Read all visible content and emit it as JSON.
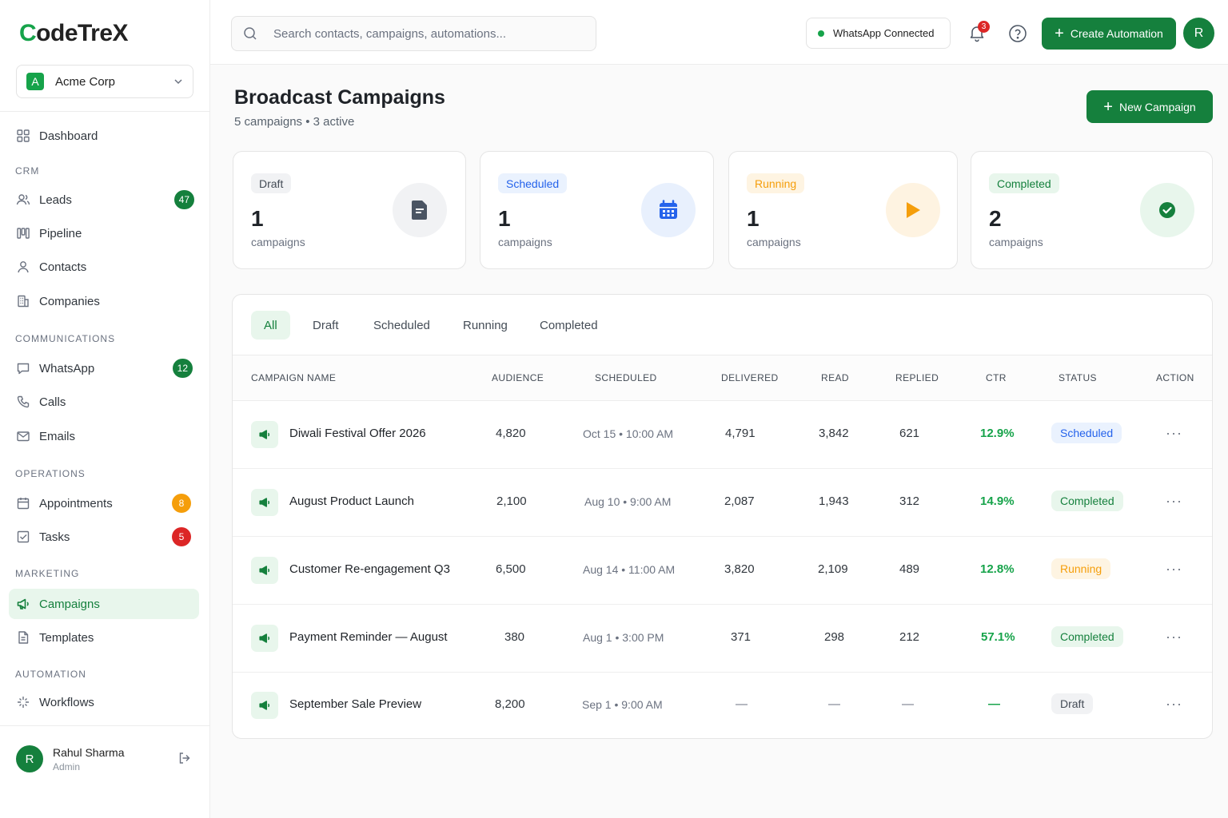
{
  "brand": {
    "logo_c": "C",
    "logo_rest": "odeTreX"
  },
  "org": {
    "initial": "A",
    "name": "Acme Corp"
  },
  "nav": {
    "dashboard": "Dashboard",
    "sections": {
      "crm": "CRM",
      "communications": "COMMUNICATIONS",
      "operations": "OPERATIONS",
      "marketing": "MARKETING",
      "automation": "AUTOMATION"
    },
    "leads": "Leads",
    "leads_badge": "47",
    "pipeline": "Pipeline",
    "contacts": "Contacts",
    "companies": "Companies",
    "whatsapp": "WhatsApp",
    "whatsapp_badge": "12",
    "calls": "Calls",
    "emails": "Emails",
    "appointments": "Appointments",
    "appointments_badge": "8",
    "tasks": "Tasks",
    "tasks_badge": "5",
    "campaigns": "Campaigns",
    "templates": "Templates",
    "workflows": "Workflows"
  },
  "user": {
    "initial": "R",
    "name": "Rahul Sharma",
    "role": "Admin"
  },
  "topbar": {
    "search_placeholder": "Search contacts, campaigns, automations...",
    "whatsapp_status": "WhatsApp Connected",
    "notif_count": "3",
    "create_label": "Create Automation",
    "avatar": "R"
  },
  "page": {
    "title": "Broadcast Campaigns",
    "subtitle": "5 campaigns • 3 active",
    "new_label": "New Campaign"
  },
  "stats": [
    {
      "tag": "Draft",
      "count": "1",
      "label": "campaigns"
    },
    {
      "tag": "Scheduled",
      "count": "1",
      "label": "campaigns"
    },
    {
      "tag": "Running",
      "count": "1",
      "label": "campaigns"
    },
    {
      "tag": "Completed",
      "count": "2",
      "label": "campaigns"
    }
  ],
  "filters": [
    "All",
    "Draft",
    "Scheduled",
    "Running",
    "Completed"
  ],
  "columns": [
    "CAMPAIGN NAME",
    "AUDIENCE",
    "SCHEDULED",
    "DELIVERED",
    "READ",
    "REPLIED",
    "CTR",
    "STATUS",
    "ACTION"
  ],
  "rows": [
    {
      "name": "Diwali Festival Offer 2026",
      "audience": "4,820",
      "scheduled": "Oct 15 • 10:00 AM",
      "delivered": "4,791",
      "read": "3,842",
      "replied": "621",
      "ctr": "12.9%",
      "status": "Scheduled"
    },
    {
      "name": "August Product Launch",
      "audience": "2,100",
      "scheduled": "Aug 10 • 9:00 AM",
      "delivered": "2,087",
      "read": "1,943",
      "replied": "312",
      "ctr": "14.9%",
      "status": "Completed"
    },
    {
      "name": "Customer Re-engagement Q3",
      "audience": "6,500",
      "scheduled": "Aug 14 • 11:00 AM",
      "delivered": "3,820",
      "read": "2,109",
      "replied": "489",
      "ctr": "12.8%",
      "status": "Running"
    },
    {
      "name": "Payment Reminder — August",
      "audience": "380",
      "scheduled": "Aug 1 • 3:00 PM",
      "delivered": "371",
      "read": "298",
      "replied": "212",
      "ctr": "57.1%",
      "status": "Completed"
    },
    {
      "name": "September Sale Preview",
      "audience": "8,200",
      "scheduled": "Sep 1 • 9:00 AM",
      "delivered": "—",
      "read": "—",
      "replied": "—",
      "ctr": "—",
      "status": "Draft"
    }
  ],
  "action_label": "···",
  "colors": {
    "brand": "#15803d",
    "accent_bg": "#e8f6ec",
    "scheduled": "#2563eb",
    "running": "#f59e0b",
    "danger": "#dc2626"
  }
}
